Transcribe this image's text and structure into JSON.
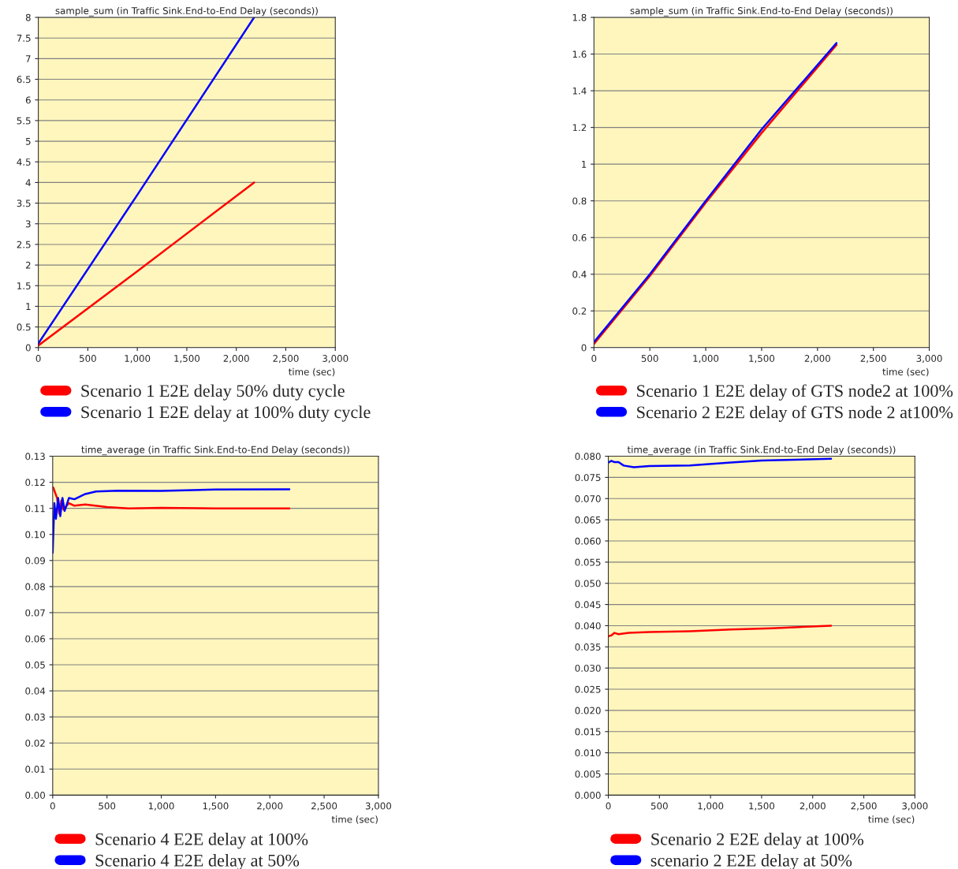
{
  "chart_data": [
    {
      "type": "line",
      "title": "sample_sum (in Traffic Sink.End-to-End Delay (seconds))",
      "xlabel": "time (sec)",
      "legend": "bottom",
      "grid": "y",
      "xlim": [
        0,
        3000
      ],
      "xticks": [
        0,
        500,
        {
          "value": 1000,
          "label": "1,000"
        },
        {
          "value": 1500,
          "label": "1,500"
        },
        {
          "value": 2000,
          "label": "2,000"
        },
        {
          "value": 2500,
          "label": "2,500"
        },
        {
          "value": 3000,
          "label": "3,000"
        }
      ],
      "ylim": [
        0,
        8
      ],
      "yticks": [
        0,
        0.5,
        1,
        1.5,
        2,
        2.5,
        3,
        3.5,
        4,
        4.5,
        5,
        5.5,
        6,
        6.5,
        7,
        7.5,
        8
      ],
      "series": [
        {
          "name": "Scenario 1 E2E delay 50% duty cycle",
          "color": "#ff0000",
          "x": [
            0,
            1000,
            2180
          ],
          "values": [
            0.05,
            1.85,
            4.0
          ]
        },
        {
          "name": "Scenario 1 E2E delay at 100% duty cycle",
          "color": "#0000ff",
          "x": [
            0,
            1000,
            2180
          ],
          "values": [
            0.1,
            3.7,
            8.0
          ]
        }
      ]
    },
    {
      "type": "line",
      "title": "sample_sum (in Traffic Sink.End-to-End Delay (seconds))",
      "xlabel": "time (sec)",
      "legend": "bottom",
      "grid": "y",
      "xlim": [
        0,
        3000
      ],
      "xticks": [
        0,
        500,
        {
          "value": 1000,
          "label": "1,000"
        },
        {
          "value": 1500,
          "label": "1,500"
        },
        {
          "value": 2000,
          "label": "2,000"
        },
        {
          "value": 2500,
          "label": "2,500"
        },
        {
          "value": 3000,
          "label": "3,000"
        }
      ],
      "ylim": [
        0,
        1.8
      ],
      "yticks": [
        0,
        0.2,
        0.4,
        0.6,
        0.8,
        1,
        1.2,
        1.4,
        1.6,
        1.8
      ],
      "series": [
        {
          "name": "Scenario 1 E2E delay of GTS node2 at 100%",
          "color": "#ff0000",
          "x": [
            0,
            500,
            1000,
            1500,
            2170
          ],
          "values": [
            0.02,
            0.39,
            0.79,
            1.17,
            1.65
          ]
        },
        {
          "name": "Scenario 2 E2E delay of GTS node 2 at100%",
          "color": "#0000ff",
          "x": [
            0,
            500,
            1000,
            1500,
            2170
          ],
          "values": [
            0.03,
            0.4,
            0.8,
            1.19,
            1.66
          ]
        }
      ]
    },
    {
      "type": "line",
      "title": "time_average (in Traffic Sink.End-to-End Delay (seconds))",
      "xlabel": "time (sec)",
      "legend": "bottom",
      "grid": "y",
      "xlim": [
        0,
        3000
      ],
      "xticks": [
        0,
        500,
        {
          "value": 1000,
          "label": "1,000"
        },
        {
          "value": 1500,
          "label": "1,500"
        },
        {
          "value": 2000,
          "label": "2,000"
        },
        {
          "value": 2500,
          "label": "2,500"
        },
        {
          "value": 3000,
          "label": "3,000"
        }
      ],
      "ylim": [
        0,
        0.13
      ],
      "yticks": [
        {
          "value": 0,
          "label": "0.00"
        },
        0.01,
        0.02,
        0.03,
        0.04,
        0.05,
        0.06,
        0.07,
        0.08,
        0.09,
        {
          "value": 0.1,
          "label": "0.10"
        },
        0.11,
        0.12,
        0.13
      ],
      "series": [
        {
          "name": "Scenario 4 E2E delay at 100%",
          "color": "#ff0000",
          "x": [
            5,
            20,
            40,
            60,
            80,
            100,
            150,
            200,
            300,
            500,
            700,
            1000,
            1500,
            2180
          ],
          "values": [
            0.118,
            null,
            0.114,
            0.108,
            0.113,
            0.1095,
            0.112,
            0.111,
            0.1115,
            0.1105,
            0.11,
            0.1102,
            0.11,
            0.11
          ]
        },
        {
          "name": "Scenario 4 E2E delay at 50%",
          "color": "#0000ff",
          "x": [
            0,
            15,
            30,
            50,
            70,
            90,
            110,
            150,
            200,
            300,
            400,
            600,
            1000,
            1500,
            2180
          ],
          "values": [
            0.093,
            0.112,
            0.106,
            0.114,
            0.107,
            0.114,
            0.109,
            0.114,
            0.1135,
            0.1155,
            0.1165,
            0.1168,
            0.1167,
            0.1172,
            0.1173
          ]
        }
      ]
    },
    {
      "type": "line",
      "title": "time_average (in Traffic Sink.End-to-End Delay (seconds))",
      "xlabel": "time (sec)",
      "legend": "bottom",
      "grid": "y",
      "xlim": [
        0,
        3000
      ],
      "xticks": [
        0,
        500,
        {
          "value": 1000,
          "label": "1,000"
        },
        {
          "value": 1500,
          "label": "1,500"
        },
        {
          "value": 2000,
          "label": "2,000"
        },
        {
          "value": 2500,
          "label": "2,500"
        },
        {
          "value": 3000,
          "label": "3,000"
        }
      ],
      "ylim": [
        0,
        0.08
      ],
      "yticks": [
        {
          "value": 0,
          "label": "0.000"
        },
        {
          "value": 0.005,
          "label": "0.005"
        },
        {
          "value": 0.01,
          "label": "0.010"
        },
        {
          "value": 0.015,
          "label": "0.015"
        },
        {
          "value": 0.02,
          "label": "0.020"
        },
        {
          "value": 0.025,
          "label": "0.025"
        },
        {
          "value": 0.03,
          "label": "0.030"
        },
        {
          "value": 0.035,
          "label": "0.035"
        },
        {
          "value": 0.04,
          "label": "0.040"
        },
        {
          "value": 0.045,
          "label": "0.045"
        },
        {
          "value": 0.05,
          "label": "0.050"
        },
        {
          "value": 0.055,
          "label": "0.055"
        },
        {
          "value": 0.06,
          "label": "0.060"
        },
        {
          "value": 0.065,
          "label": "0.065"
        },
        {
          "value": 0.07,
          "label": "0.070"
        },
        {
          "value": 0.075,
          "label": "0.075"
        },
        {
          "value": 0.08,
          "label": "0.080"
        }
      ],
      "series": [
        {
          "name": "Scenario 2 E2E delay at 100%",
          "color": "#ff0000",
          "x": [
            0,
            30,
            60,
            100,
            200,
            400,
            800,
            1200,
            1600,
            2180
          ],
          "values": [
            0.0375,
            0.0377,
            0.0383,
            0.038,
            0.0383,
            0.0385,
            0.0387,
            0.0391,
            0.0394,
            0.04
          ]
        },
        {
          "name": "scenario 2 E2E delay at 50%",
          "color": "#0000ff",
          "x": [
            0,
            30,
            60,
            100,
            150,
            250,
            400,
            800,
            1200,
            1500,
            2180
          ],
          "values": [
            0.0785,
            0.0789,
            0.0786,
            0.0786,
            0.0778,
            0.0774,
            0.0777,
            0.0778,
            0.0785,
            0.079,
            0.0794
          ]
        }
      ]
    }
  ]
}
